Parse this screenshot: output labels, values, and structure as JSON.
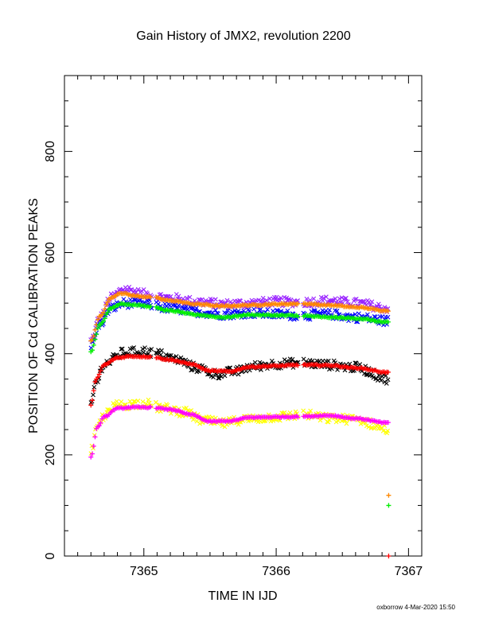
{
  "footer": "oxborrow  4-Mar-2020 15:50",
  "chart_data": {
    "type": "scatter",
    "title": "Gain History of JMX2, revolution 2200",
    "xlabel": "TIME IN IJD",
    "ylabel": "POSITION OF Cd CALIBRATION PEAKS",
    "xlim": [
      7364.4,
      7367.1
    ],
    "ylim": [
      0,
      950
    ],
    "xticks": [
      7365,
      7366,
      7367
    ],
    "yticks": [
      0,
      200,
      400,
      600,
      800
    ],
    "xtick_labels": [
      "7365",
      "7366",
      "7367"
    ],
    "ytick_labels": [
      "0",
      "200",
      "400",
      "600",
      "800"
    ],
    "grid": false,
    "x_start": 7364.6,
    "x_end": 7366.85,
    "gaps": [
      [
        7365.06,
        7365.09
      ],
      [
        7366.17,
        7366.2
      ],
      [
        7366.85,
        7367.0
      ]
    ],
    "series": [
      {
        "marker": "x",
        "color": "#9922ff",
        "scatter": 9,
        "curve": [
          [
            7364.6,
            425
          ],
          [
            7364.67,
            472
          ],
          [
            7364.75,
            510
          ],
          [
            7364.85,
            528
          ],
          [
            7365.0,
            518
          ],
          [
            7365.2,
            510
          ],
          [
            7365.4,
            503
          ],
          [
            7365.6,
            498
          ],
          [
            7365.8,
            500
          ],
          [
            7366.0,
            503
          ],
          [
            7366.2,
            502
          ],
          [
            7366.4,
            505
          ],
          [
            7366.6,
            500
          ],
          [
            7366.85,
            490
          ]
        ]
      },
      {
        "marker": "x",
        "color": "#0000ff",
        "scatter": 9,
        "curve": [
          [
            7364.6,
            415
          ],
          [
            7364.67,
            460
          ],
          [
            7364.75,
            490
          ],
          [
            7364.85,
            500
          ],
          [
            7365.0,
            498
          ],
          [
            7365.2,
            490
          ],
          [
            7365.4,
            483
          ],
          [
            7365.6,
            478
          ],
          [
            7365.8,
            481
          ],
          [
            7366.0,
            478
          ],
          [
            7366.2,
            476
          ],
          [
            7366.4,
            478
          ],
          [
            7366.6,
            472
          ],
          [
            7366.85,
            465
          ]
        ]
      },
      {
        "marker": "+",
        "color": "#ff8800",
        "scatter": 0,
        "curve": [
          [
            7364.6,
            425
          ],
          [
            7364.67,
            475
          ],
          [
            7364.75,
            510
          ],
          [
            7364.82,
            520
          ],
          [
            7364.95,
            514
          ],
          [
            7365.05,
            512
          ],
          [
            7365.2,
            505
          ],
          [
            7365.4,
            498
          ],
          [
            7365.6,
            494
          ],
          [
            7365.8,
            496
          ],
          [
            7366.0,
            498
          ],
          [
            7366.2,
            499
          ],
          [
            7366.4,
            496
          ],
          [
            7366.6,
            492
          ],
          [
            7366.85,
            485
          ]
        ]
      },
      {
        "marker": "+",
        "color": "#00ee00",
        "scatter": 0,
        "curve": [
          [
            7364.6,
            405
          ],
          [
            7364.67,
            458
          ],
          [
            7364.75,
            490
          ],
          [
            7364.82,
            498
          ],
          [
            7364.95,
            497
          ],
          [
            7365.05,
            493
          ],
          [
            7365.2,
            485
          ],
          [
            7365.4,
            477
          ],
          [
            7365.6,
            472
          ],
          [
            7365.8,
            477
          ],
          [
            7366.0,
            476
          ],
          [
            7366.2,
            475
          ],
          [
            7366.4,
            472
          ],
          [
            7366.6,
            470
          ],
          [
            7366.85,
            462
          ]
        ]
      },
      {
        "marker": "x",
        "color": "#000000",
        "scatter": 9,
        "curve": [
          [
            7364.6,
            300
          ],
          [
            7364.64,
            345
          ],
          [
            7364.7,
            380
          ],
          [
            7364.85,
            402
          ],
          [
            7365.0,
            405
          ],
          [
            7365.1,
            400
          ],
          [
            7365.25,
            388
          ],
          [
            7365.4,
            372
          ],
          [
            7365.55,
            360
          ],
          [
            7365.7,
            365
          ],
          [
            7365.8,
            374
          ],
          [
            7366.0,
            380
          ],
          [
            7366.2,
            382
          ],
          [
            7366.4,
            378
          ],
          [
            7366.6,
            373
          ],
          [
            7366.85,
            350
          ]
        ]
      },
      {
        "marker": "+",
        "color": "#ff0000",
        "scatter": 0,
        "curve": [
          [
            7364.6,
            298
          ],
          [
            7364.64,
            350
          ],
          [
            7364.7,
            378
          ],
          [
            7364.8,
            392
          ],
          [
            7364.9,
            395
          ],
          [
            7365.05,
            394
          ],
          [
            7365.2,
            388
          ],
          [
            7365.35,
            380
          ],
          [
            7365.5,
            366
          ],
          [
            7365.65,
            365
          ],
          [
            7365.8,
            374
          ],
          [
            7366.0,
            376
          ],
          [
            7366.2,
            378
          ],
          [
            7366.4,
            377
          ],
          [
            7366.6,
            372
          ],
          [
            7366.85,
            363
          ]
        ]
      },
      {
        "marker": "x",
        "color": "#ffff00",
        "scatter": 9,
        "curve": [
          [
            7364.6,
            205
          ],
          [
            7364.65,
            255
          ],
          [
            7364.7,
            278
          ],
          [
            7364.8,
            298
          ],
          [
            7365.0,
            302
          ],
          [
            7365.15,
            292
          ],
          [
            7365.3,
            285
          ],
          [
            7365.45,
            268
          ],
          [
            7365.6,
            262
          ],
          [
            7365.75,
            270
          ],
          [
            7366.0,
            275
          ],
          [
            7366.2,
            280
          ],
          [
            7366.4,
            272
          ],
          [
            7366.6,
            270
          ],
          [
            7366.85,
            250
          ]
        ]
      },
      {
        "marker": "+",
        "color": "#ff00ff",
        "scatter": 0,
        "curve": [
          [
            7364.6,
            195
          ],
          [
            7364.65,
            255
          ],
          [
            7364.7,
            275
          ],
          [
            7364.8,
            292
          ],
          [
            7364.9,
            294
          ],
          [
            7365.05,
            294
          ],
          [
            7365.2,
            290
          ],
          [
            7365.35,
            280
          ],
          [
            7365.5,
            266
          ],
          [
            7365.65,
            267
          ],
          [
            7365.8,
            274
          ],
          [
            7366.0,
            275
          ],
          [
            7366.2,
            276
          ],
          [
            7366.4,
            278
          ],
          [
            7366.6,
            272
          ],
          [
            7366.85,
            263
          ]
        ]
      }
    ],
    "outliers": [
      {
        "marker": "+",
        "color": "#ff8800",
        "x": 7366.85,
        "y": 120
      },
      {
        "marker": "+",
        "color": "#00ee00",
        "x": 7366.85,
        "y": 100
      },
      {
        "marker": "+",
        "color": "#ff0000",
        "x": 7366.85,
        "y": 0
      }
    ]
  }
}
